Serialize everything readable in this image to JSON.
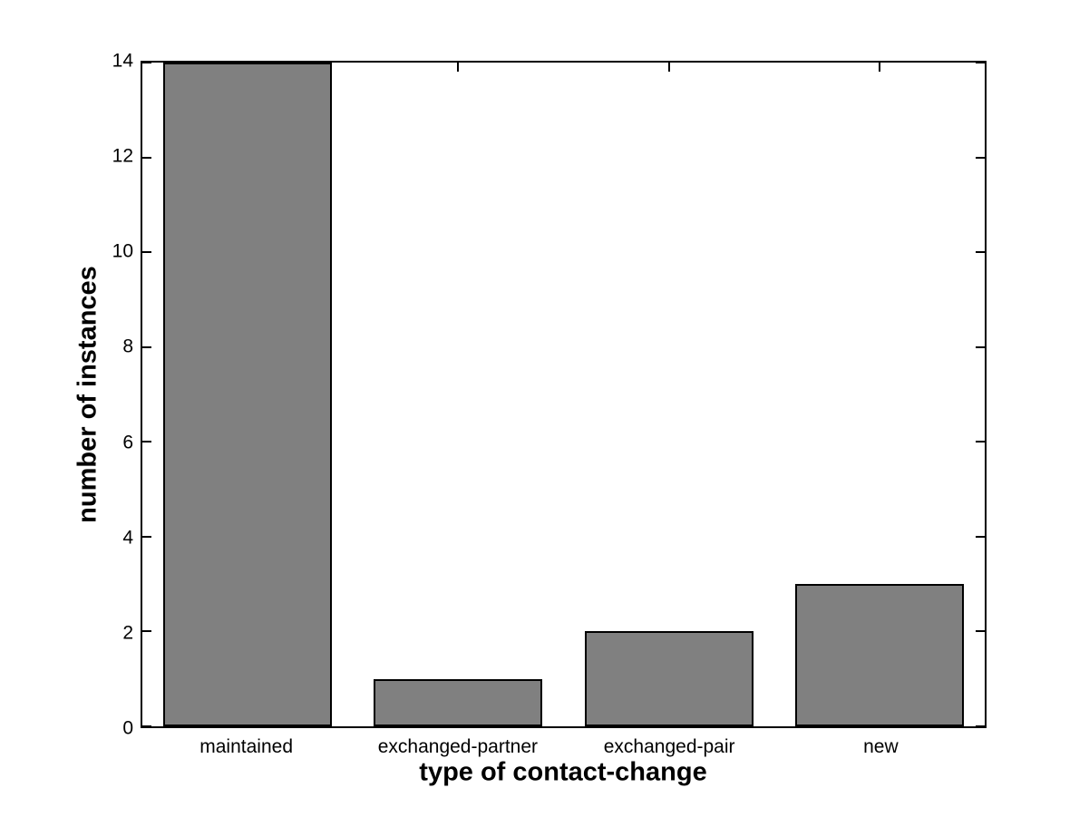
{
  "chart_data": {
    "type": "bar",
    "title": "",
    "xlabel": "type of contact-change",
    "ylabel": "number of instances",
    "categories": [
      "maintained",
      "exchanged-partner",
      "exchanged-pair",
      "new"
    ],
    "values": [
      14,
      1,
      2,
      3
    ],
    "ylim": [
      0,
      14
    ],
    "yticks": [
      0,
      2,
      4,
      6,
      8,
      10,
      12,
      14
    ],
    "bar_relative_width": 0.8,
    "bar_color": "#808080",
    "bar_edge_color": "#000000",
    "axis_color": "#000000",
    "background_color": "#ffffff",
    "grid": false,
    "legend": "none",
    "tick_direction": "in",
    "box": true
  }
}
